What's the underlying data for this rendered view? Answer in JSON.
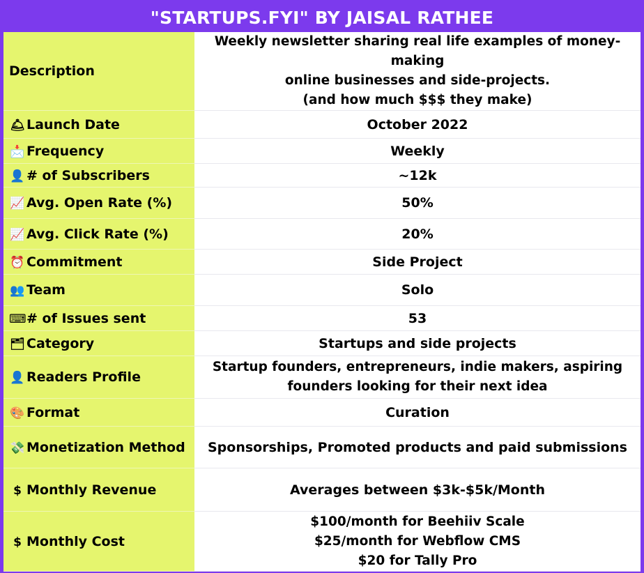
{
  "title": "\"STARTUPS.FYI\" BY JAISAL RATHEE",
  "colors": {
    "border": "#7c3aed",
    "label_bg": "#e5f56e"
  },
  "rows": [
    {
      "icon": "",
      "label": "Description",
      "value": [
        "Weekly newsletter sharing real life examples of money-making",
        "online businesses and side-projects.",
        "(and how much $$$ they make)"
      ]
    },
    {
      "icon": "🛎",
      "icon_name": "bell-icon",
      "label": "Launch Date",
      "value": [
        "October 2022"
      ]
    },
    {
      "icon": "📩",
      "icon_name": "envelope-icon",
      "label": "Frequency",
      "value": [
        "Weekly"
      ]
    },
    {
      "icon": "👤",
      "icon_name": "person-icon",
      "label": "# of Subscribers",
      "value": [
        "~12k"
      ]
    },
    {
      "icon": "📈",
      "icon_name": "chart-up-icon",
      "label": "Avg. Open Rate (%)",
      "value": [
        "50%"
      ]
    },
    {
      "icon": "📈",
      "icon_name": "chart-up-icon",
      "label": "Avg. Click Rate (%)",
      "value": [
        "20%"
      ]
    },
    {
      "icon": "⏰",
      "icon_name": "alarm-clock-icon",
      "label": "Commitment",
      "value": [
        "Side Project"
      ]
    },
    {
      "icon": "👥",
      "icon_name": "people-icon",
      "label": "Team",
      "value": [
        "Solo"
      ]
    },
    {
      "icon": "⌨",
      "icon_name": "keyboard-icon",
      "label": "# of Issues sent",
      "value": [
        "53"
      ]
    },
    {
      "icon": "🗂",
      "icon_name": "folder-icon",
      "label": "Category",
      "value": [
        "Startups and side projects"
      ]
    },
    {
      "icon": "👤",
      "icon_name": "person-icon",
      "label": "Readers Profile",
      "value": [
        "Startup founders, entrepreneurs, indie makers, aspiring",
        "founders looking for their next idea"
      ]
    },
    {
      "icon": "🎨",
      "icon_name": "palette-icon",
      "label": "Format",
      "value": [
        "Curation"
      ]
    },
    {
      "icon": "💸",
      "icon_name": "money-wings-icon",
      "label": "Monetization Method",
      "value": [
        "Sponsorships, Promoted products and paid submissions"
      ]
    },
    {
      "icon": "$",
      "icon_name": "dollar-icon",
      "label": "Monthly Revenue",
      "value": [
        "Averages between $3k-$5k/Month"
      ]
    },
    {
      "icon": "$",
      "icon_name": "dollar-icon",
      "label": "Monthly Cost",
      "value": [
        "$100/month for Beehiiv Scale",
        "$25/month for Webflow CMS",
        "$20 for Tally Pro"
      ]
    }
  ]
}
